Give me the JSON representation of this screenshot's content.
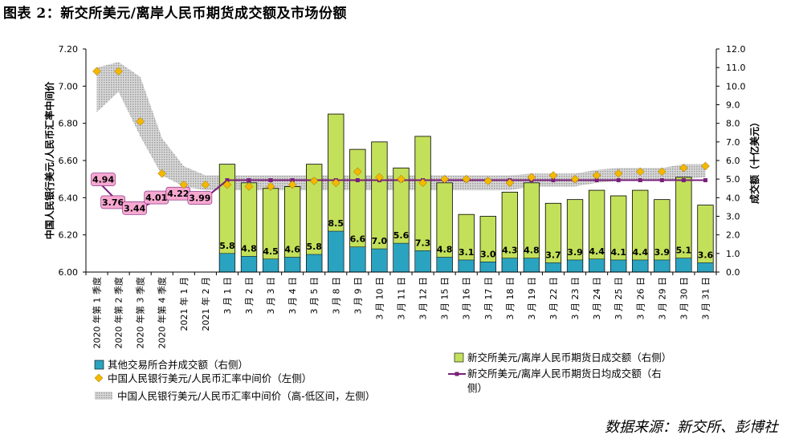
{
  "title": "图表 2：新交所美元/离岸人民币期货成交额及市场份额",
  "source": "数据来源：新交所、彭博社",
  "chart_data": {
    "type": "bar",
    "categories": [
      "2020 年第 1 季度",
      "2020 年第 2 季度",
      "2020 年第 3 季度",
      "2020 年第 4 季度",
      "2021 年 1 月",
      "2021 年 2 月",
      "3 月 1 日",
      "3 月 2 日",
      "3 月 3 日",
      "3 月 4 日",
      "3 月 5 日",
      "3 月 8 日",
      "3 月 9 日",
      "3 月 10 日",
      "3 月 11 日",
      "3 月 12 日",
      "3 月 15 日",
      "3 月 16 日",
      "3 月 17 日",
      "3 月 18 日",
      "3 月 19 日",
      "3 月 22 日",
      "3 月 23 日",
      "3 月 24 日",
      "3 月 25 日",
      "3 月 26 日",
      "3 月 29 日",
      "3 月 30 日",
      "3 月 31 日"
    ],
    "ylabel_left": "中国人民银行美元/人民币汇率中间价",
    "ylabel_right": "成交额（十亿美元）",
    "ylim_left": [
      6.0,
      7.2
    ],
    "ylim_right": [
      0.0,
      12.0
    ],
    "yticks_left": [
      "6.00",
      "6.20",
      "6.40",
      "6.60",
      "6.80",
      "7.00",
      "7.20"
    ],
    "yticks_right": [
      "0.0",
      "1.0",
      "2.0",
      "3.0",
      "4.0",
      "5.0",
      "6.0",
      "7.0",
      "8.0",
      "9.0",
      "10.0",
      "11.0",
      "12.0"
    ],
    "colors": {
      "sgx": "#c3e05a",
      "other": "#2aa3c0",
      "fixing": "#f5b800",
      "avg": "#7a1f7a",
      "avg_label_bg": "#f7a8d0",
      "range": "#aaaaaa"
    },
    "series": [
      {
        "name": "新交所美元/离岸人民币期货日成交额（右侧）",
        "axis": "right",
        "values": [
          null,
          null,
          null,
          null,
          null,
          null,
          5.8,
          4.8,
          4.5,
          4.6,
          5.8,
          8.5,
          6.6,
          7.0,
          5.6,
          7.3,
          4.8,
          3.1,
          3.0,
          4.3,
          4.8,
          3.7,
          3.9,
          4.4,
          4.1,
          4.4,
          3.9,
          5.1,
          3.6
        ],
        "labels": [
          "",
          "",
          "",
          "",
          "",
          "",
          "5.8",
          "4.8",
          "4.5",
          "4.6",
          "5.8",
          "8.5",
          "6.6",
          "7.0",
          "5.6",
          "7.3",
          "4.8",
          "3.1",
          "3.0",
          "4.3",
          "4.8",
          "3.7",
          "3.9",
          "4.4",
          "4.1",
          "4.4",
          "3.9",
          "5.1",
          "3.6"
        ]
      },
      {
        "name": "其他交易所合并成交额（右侧）",
        "axis": "right",
        "values": [
          null,
          null,
          null,
          null,
          null,
          null,
          1.0,
          0.85,
          0.7,
          0.8,
          0.95,
          2.2,
          1.35,
          1.25,
          1.55,
          1.15,
          0.8,
          0.65,
          0.55,
          0.75,
          0.75,
          0.5,
          0.65,
          0.7,
          0.65,
          0.65,
          0.65,
          0.75,
          0.5
        ]
      },
      {
        "name": "新交所美元/离岸人民币期货日均成交额（右侧）",
        "axis": "right",
        "values": [
          4.94,
          3.76,
          3.44,
          4.01,
          4.22,
          3.99,
          4.94,
          4.94,
          4.94,
          4.94,
          4.94,
          4.94,
          4.94,
          4.94,
          4.94,
          4.94,
          4.94,
          4.94,
          4.94,
          4.94,
          4.94,
          4.94,
          4.94,
          4.94,
          4.94,
          4.94,
          4.94,
          4.94,
          4.94
        ],
        "labels": [
          "4.94",
          "3.76",
          "3.44",
          "4.01",
          "4.22",
          "3.99"
        ]
      },
      {
        "name": "中国人民银行美元/人民币汇率中间价（左侧）",
        "axis": "left",
        "values": [
          7.08,
          7.08,
          6.81,
          6.53,
          6.47,
          6.47,
          6.47,
          6.46,
          6.46,
          6.47,
          6.49,
          6.48,
          6.54,
          6.51,
          6.5,
          6.48,
          6.5,
          6.5,
          6.49,
          6.48,
          6.51,
          6.52,
          6.5,
          6.52,
          6.53,
          6.54,
          6.54,
          6.56,
          6.57
        ]
      },
      {
        "name": "中国人民银行美元/人民币汇率中间价（高-低区间，左侧）",
        "axis": "left",
        "high": [
          7.1,
          7.13,
          7.05,
          6.72,
          6.57,
          6.52,
          6.52,
          6.52,
          6.52,
          6.52,
          6.52,
          6.52,
          6.52,
          6.52,
          6.52,
          6.52,
          6.52,
          6.52,
          6.52,
          6.52,
          6.53,
          6.53,
          6.53,
          6.55,
          6.56,
          6.56,
          6.56,
          6.58,
          6.58
        ],
        "low": [
          6.86,
          6.97,
          6.73,
          6.52,
          6.46,
          6.44,
          6.44,
          6.44,
          6.44,
          6.44,
          6.44,
          6.44,
          6.44,
          6.44,
          6.44,
          6.44,
          6.44,
          6.44,
          6.44,
          6.44,
          6.46,
          6.46,
          6.46,
          6.48,
          6.49,
          6.49,
          6.49,
          6.5,
          6.51
        ]
      }
    ],
    "legend": [
      {
        "key": "other",
        "label": "其他交易所合并成交额（右侧）"
      },
      {
        "key": "fixing",
        "label": "中国人民银行美元/人民币汇率中间价（左侧）"
      },
      {
        "key": "range",
        "label": "中国人民银行美元/人民币汇率中间价（高-低区间，左侧）"
      },
      {
        "key": "sgx",
        "label": "新交所美元/离岸人民币期货日成交额（右侧）"
      },
      {
        "key": "avg",
        "label_l1": "新交所美元/离岸人民币期货日均成交额（右",
        "label_l2": "侧）"
      }
    ]
  }
}
